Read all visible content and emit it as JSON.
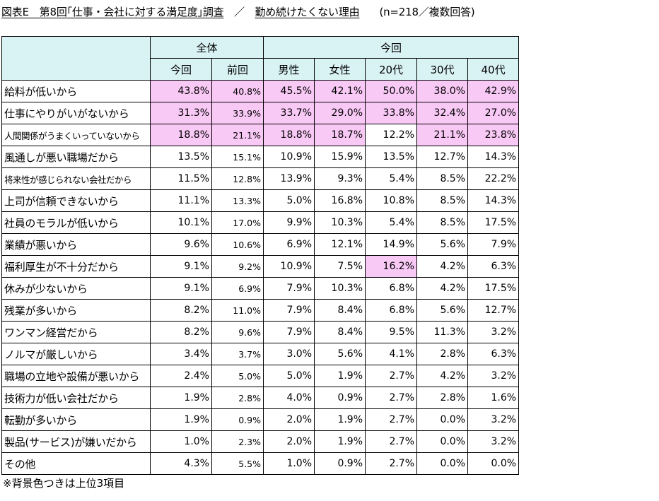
{
  "title": {
    "main": "図表E　第8回｢仕事・会社に対する満足度｣調査",
    "separator": "／",
    "subtitle": "勤め続けたくない理由",
    "note": "(n=218／複数回答)"
  },
  "table": {
    "group_headers": [
      "全体",
      "今回"
    ],
    "columns": [
      "今回",
      "前回",
      "男性",
      "女性",
      "20代",
      "30代",
      "40代"
    ],
    "rows": [
      {
        "label": "給料が低いから",
        "small": false,
        "values": [
          "43.8%",
          "40.8%",
          "45.5%",
          "42.1%",
          "50.0%",
          "38.0%",
          "42.9%"
        ],
        "highlight": [
          1,
          1,
          1,
          1,
          1,
          1,
          1
        ]
      },
      {
        "label": "仕事にやりがいがないから",
        "small": false,
        "values": [
          "31.3%",
          "33.9%",
          "33.7%",
          "29.0%",
          "33.8%",
          "32.4%",
          "27.0%"
        ],
        "highlight": [
          1,
          1,
          1,
          1,
          1,
          1,
          1
        ]
      },
      {
        "label": "人間関係がうまくいっていないから",
        "small": true,
        "values": [
          "18.8%",
          "21.1%",
          "18.8%",
          "18.7%",
          "12.2%",
          "21.1%",
          "23.8%"
        ],
        "highlight": [
          1,
          1,
          1,
          1,
          0,
          1,
          1
        ]
      },
      {
        "label": "風通しが悪い職場だから",
        "small": false,
        "values": [
          "13.5%",
          "15.1%",
          "10.9%",
          "15.9%",
          "13.5%",
          "12.7%",
          "14.3%"
        ],
        "highlight": [
          0,
          0,
          0,
          0,
          0,
          0,
          0
        ]
      },
      {
        "label": "将来性が感じられない会社だから",
        "small": true,
        "values": [
          "11.5%",
          "12.8%",
          "13.9%",
          "9.3%",
          "5.4%",
          "8.5%",
          "22.2%"
        ],
        "highlight": [
          0,
          0,
          0,
          0,
          0,
          0,
          0
        ]
      },
      {
        "label": "上司が信頼できないから",
        "small": false,
        "values": [
          "11.1%",
          "13.3%",
          "5.0%",
          "16.8%",
          "10.8%",
          "8.5%",
          "14.3%"
        ],
        "highlight": [
          0,
          0,
          0,
          0,
          0,
          0,
          0
        ]
      },
      {
        "label": "社員のモラルが低いから",
        "small": false,
        "values": [
          "10.1%",
          "17.0%",
          "9.9%",
          "10.3%",
          "5.4%",
          "8.5%",
          "17.5%"
        ],
        "highlight": [
          0,
          0,
          0,
          0,
          0,
          0,
          0
        ]
      },
      {
        "label": "業績が悪いから",
        "small": false,
        "values": [
          "9.6%",
          "10.6%",
          "6.9%",
          "12.1%",
          "14.9%",
          "5.6%",
          "7.9%"
        ],
        "highlight": [
          0,
          0,
          0,
          0,
          0,
          0,
          0
        ]
      },
      {
        "label": "福利厚生が不十分だから",
        "small": false,
        "values": [
          "9.1%",
          "9.2%",
          "10.9%",
          "7.5%",
          "16.2%",
          "4.2%",
          "6.3%"
        ],
        "highlight": [
          0,
          0,
          0,
          0,
          1,
          0,
          0
        ]
      },
      {
        "label": "休みが少ないから",
        "small": false,
        "values": [
          "9.1%",
          "6.9%",
          "7.9%",
          "10.3%",
          "6.8%",
          "4.2%",
          "17.5%"
        ],
        "highlight": [
          0,
          0,
          0,
          0,
          0,
          0,
          0
        ]
      },
      {
        "label": "残業が多いから",
        "small": false,
        "values": [
          "8.2%",
          "11.0%",
          "7.9%",
          "8.4%",
          "6.8%",
          "5.6%",
          "12.7%"
        ],
        "highlight": [
          0,
          0,
          0,
          0,
          0,
          0,
          0
        ]
      },
      {
        "label": "ワンマン経営だから",
        "small": false,
        "values": [
          "8.2%",
          "9.6%",
          "7.9%",
          "8.4%",
          "9.5%",
          "11.3%",
          "3.2%"
        ],
        "highlight": [
          0,
          0,
          0,
          0,
          0,
          0,
          0
        ]
      },
      {
        "label": "ノルマが厳しいから",
        "small": false,
        "values": [
          "3.4%",
          "3.7%",
          "3.0%",
          "5.6%",
          "4.1%",
          "2.8%",
          "6.3%"
        ],
        "highlight": [
          0,
          0,
          0,
          0,
          0,
          0,
          0
        ]
      },
      {
        "label": "職場の立地や設備が悪いから",
        "small": false,
        "values": [
          "2.4%",
          "5.0%",
          "5.0%",
          "1.9%",
          "2.7%",
          "4.2%",
          "3.2%"
        ],
        "highlight": [
          0,
          0,
          0,
          0,
          0,
          0,
          0
        ]
      },
      {
        "label": "技術力が低い会社だから",
        "small": false,
        "values": [
          "1.9%",
          "2.8%",
          "4.0%",
          "0.9%",
          "2.7%",
          "2.8%",
          "1.6%"
        ],
        "highlight": [
          0,
          0,
          0,
          0,
          0,
          0,
          0
        ]
      },
      {
        "label": "転勤が多いから",
        "small": false,
        "values": [
          "1.9%",
          "0.9%",
          "2.0%",
          "1.9%",
          "2.7%",
          "0.0%",
          "3.2%"
        ],
        "highlight": [
          0,
          0,
          0,
          0,
          0,
          0,
          0
        ]
      },
      {
        "label": "製品(サービス)が嫌いだから",
        "small": false,
        "values": [
          "1.0%",
          "2.3%",
          "2.0%",
          "1.9%",
          "2.7%",
          "0.0%",
          "3.2%"
        ],
        "highlight": [
          0,
          0,
          0,
          0,
          0,
          0,
          0
        ]
      },
      {
        "label": "その他",
        "small": false,
        "values": [
          "4.3%",
          "5.5%",
          "1.0%",
          "0.9%",
          "2.7%",
          "0.0%",
          "0.0%"
        ],
        "highlight": [
          0,
          0,
          0,
          0,
          0,
          0,
          0
        ]
      }
    ]
  },
  "footnote": "※背景色つきは上位3項目",
  "colors": {
    "header_bg": "#d9f2f4",
    "highlight_bg": "#f9c9f6"
  }
}
